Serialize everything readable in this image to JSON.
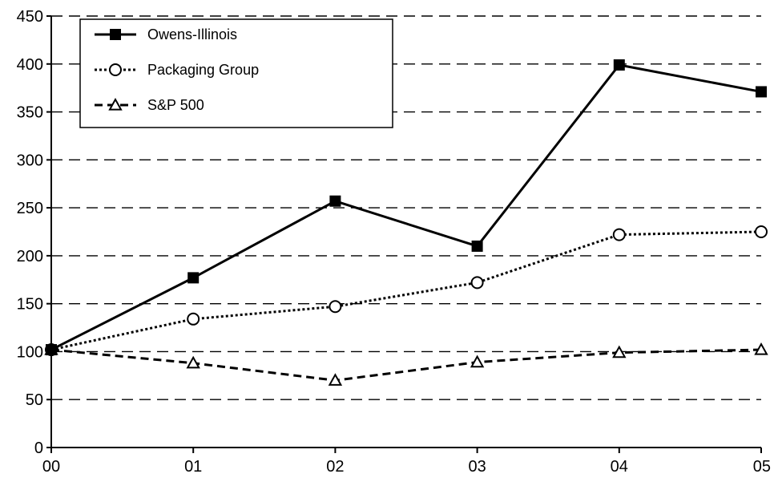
{
  "chart_data": {
    "type": "line",
    "categories": [
      "00",
      "01",
      "02",
      "03",
      "04",
      "05"
    ],
    "ylim": [
      0,
      450
    ],
    "yticks": [
      0,
      50,
      100,
      150,
      200,
      250,
      300,
      350,
      400,
      450
    ],
    "grid": "horizontal-dashed",
    "legend_position": "top-left",
    "series": [
      {
        "name": "Owens-Illinois",
        "values": [
          102,
          177,
          257,
          210,
          399,
          371
        ],
        "line_style": "solid",
        "marker": "filled-square",
        "color": "#000000"
      },
      {
        "name": "Packaging Group",
        "values": [
          102,
          134,
          147,
          172,
          222,
          225
        ],
        "line_style": "dotted",
        "marker": "open-circle",
        "color": "#000000"
      },
      {
        "name": "S&P 500",
        "values": [
          102,
          88,
          70,
          89,
          99,
          102
        ],
        "line_style": "dashed",
        "marker": "open-triangle",
        "color": "#000000"
      }
    ]
  }
}
